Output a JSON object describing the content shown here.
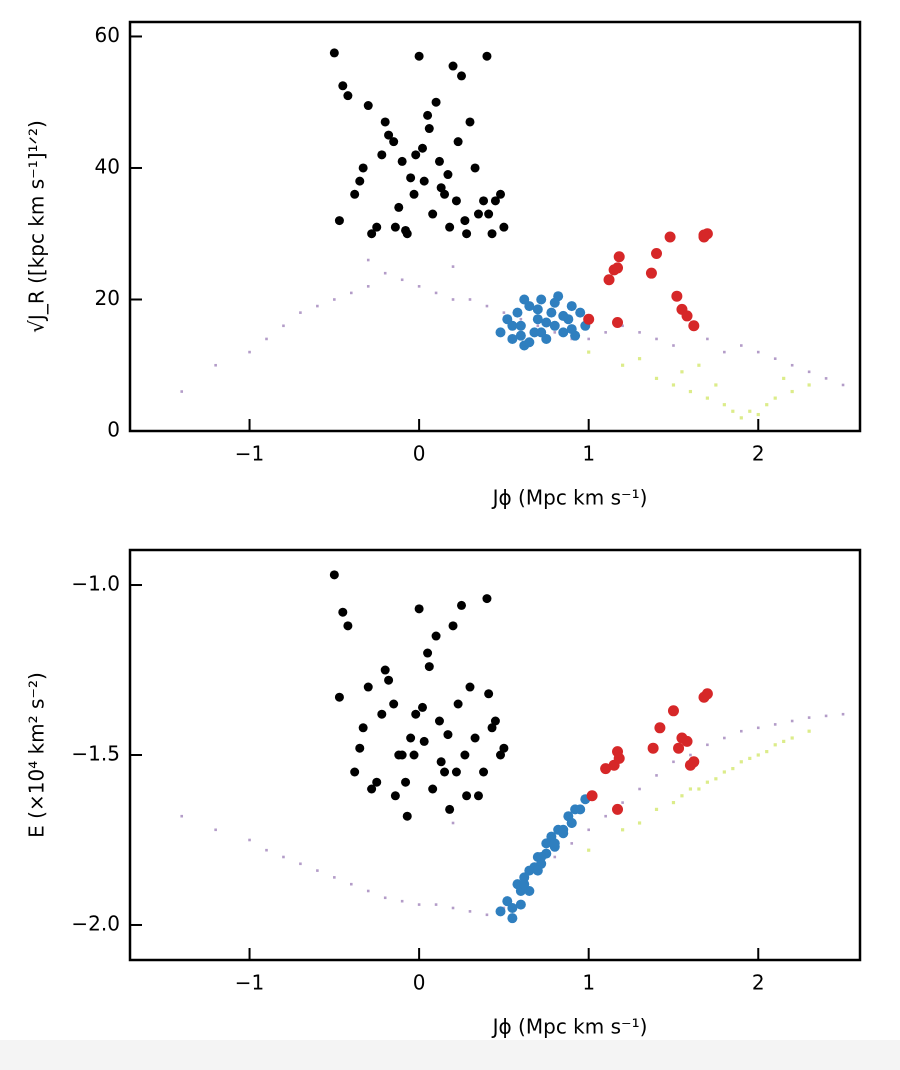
{
  "chart_data": [
    {
      "type": "scatter",
      "xlabel": "Jϕ (Mpc km s⁻¹)",
      "ylabel": "√J_R ([kpc km s⁻¹]¹ᐟ²)",
      "xlim": [
        -1.705,
        2.6
      ],
      "ylim": [
        0,
        62.2
      ],
      "xticks": [
        {
          "value": -1,
          "label": "−1"
        },
        0,
        1,
        2
      ],
      "yticks": [
        0,
        20,
        40,
        60
      ],
      "grid": false,
      "series": [
        {
          "color": "#b39cc8",
          "x": [
            -1.4,
            -1.2,
            -1.0,
            -0.9,
            -0.8,
            -0.7,
            -0.6,
            -0.5,
            -0.4,
            -0.3,
            -0.2,
            -0.1,
            0,
            0.1,
            0.2,
            0.3,
            0.4,
            0.5,
            0.6,
            0.7,
            0.8,
            0.9,
            1.0,
            1.1,
            1.2,
            1.3,
            1.4,
            1.5,
            1.6,
            1.7,
            1.8,
            1.9,
            2.0,
            2.1,
            2.2,
            2.3,
            2.4,
            2.5,
            -0.3,
            0.2
          ],
          "values": [
            6,
            10,
            12,
            14,
            16,
            18,
            19,
            20,
            21,
            22,
            24,
            23,
            22,
            21,
            20,
            20,
            19,
            18,
            17,
            16,
            15,
            14,
            14,
            15,
            16,
            15,
            14,
            13,
            16,
            14,
            12,
            13,
            12,
            11,
            10,
            9,
            8,
            7,
            26,
            25
          ]
        },
        {
          "color": "#dcec8a",
          "x": [
            1.0,
            1.2,
            1.4,
            1.5,
            1.6,
            1.7,
            1.8,
            1.85,
            1.9,
            1.95,
            2.0,
            2.05,
            2.1,
            2.2,
            2.3,
            1.3,
            1.55,
            1.75,
            2.15,
            1.65
          ],
          "values": [
            12,
            10,
            8,
            7,
            6,
            5,
            4,
            3,
            2,
            3,
            2.5,
            4,
            5,
            6,
            7,
            11,
            9,
            7,
            8,
            10
          ]
        },
        {
          "color": "#2f7fbf",
          "x": [
            0.48,
            0.52,
            0.55,
            0.58,
            0.6,
            0.62,
            0.65,
            0.68,
            0.7,
            0.72,
            0.75,
            0.78,
            0.8,
            0.82,
            0.85,
            0.88,
            0.9,
            0.92,
            0.95,
            0.98,
            0.55,
            0.6,
            0.65,
            0.7,
            0.75,
            0.8,
            0.85,
            0.9,
            0.62,
            0.72
          ],
          "values": [
            15,
            17,
            14,
            18,
            16,
            13,
            19,
            15,
            17,
            20,
            14,
            18,
            16,
            20.5,
            15,
            17,
            19,
            14.5,
            18,
            16,
            16,
            14.5,
            13.5,
            18.5,
            16.5,
            19.5,
            17.5,
            15.5,
            20,
            15
          ]
        },
        {
          "color": "#000000",
          "x": [
            -0.5,
            -0.45,
            -0.42,
            -0.3,
            -0.28,
            -0.2,
            -0.15,
            -0.1,
            -0.05,
            0,
            0.05,
            0.1,
            0.15,
            0.2,
            0.25,
            0.3,
            0.35,
            0.4,
            0.45,
            0.5,
            -0.47,
            -0.38,
            -0.33,
            -0.25,
            -0.18,
            -0.12,
            -0.07,
            -0.02,
            0.03,
            0.08,
            0.13,
            0.18,
            0.23,
            0.28,
            0.33,
            0.38,
            0.43,
            0.48,
            -0.35,
            -0.22,
            -0.08,
            0.06,
            0.17,
            0.27,
            0.41,
            -0.03,
            0.12,
            -0.14,
            0.22,
            0.02
          ],
          "values": [
            57.5,
            52.5,
            51,
            49.5,
            30,
            47,
            44,
            41,
            38.5,
            57,
            48,
            50,
            36,
            55.5,
            54,
            47,
            33,
            57,
            35,
            31,
            32,
            36,
            40,
            31,
            45,
            34,
            30,
            42,
            38,
            33,
            37,
            31,
            44,
            30,
            40,
            35,
            30,
            36,
            38,
            42,
            30.5,
            46,
            39,
            32,
            33,
            36,
            41,
            31,
            35,
            43
          ]
        },
        {
          "color": "#d62728",
          "x": [
            1.0,
            1.12,
            1.15,
            1.18,
            1.17,
            1.37,
            1.4,
            1.48,
            1.52,
            1.55,
            1.58,
            1.62,
            1.68,
            1.7,
            1.68,
            1.17
          ],
          "values": [
            17,
            23,
            24.5,
            26.5,
            16.5,
            24,
            27,
            29.5,
            20.5,
            18.5,
            17.5,
            16,
            29.5,
            30,
            29.8,
            24.8
          ]
        }
      ]
    },
    {
      "type": "scatter",
      "xlabel": "Jϕ (Mpc km s⁻¹)",
      "ylabel": "E (×10⁴ km² s⁻²)",
      "xlim": [
        -1.705,
        2.6
      ],
      "ylim": [
        -2.103,
        -0.897
      ],
      "xticks": [
        {
          "value": -1,
          "label": "−1"
        },
        0,
        1,
        2
      ],
      "yticks": [
        {
          "value": -2.0,
          "label": "−2.0"
        },
        {
          "value": -1.5,
          "label": "−1.5"
        },
        {
          "value": -1.0,
          "label": "−1.0"
        }
      ],
      "grid": false,
      "series": [
        {
          "color": "#b39cc8",
          "x": [
            -1.4,
            -1.2,
            -1.0,
            -0.9,
            -0.8,
            -0.7,
            -0.6,
            -0.5,
            -0.4,
            -0.3,
            -0.2,
            -0.1,
            0,
            0.1,
            0.2,
            0.3,
            0.4,
            0.5,
            0.6,
            0.7,
            0.8,
            0.9,
            1.0,
            1.1,
            1.2,
            1.3,
            1.4,
            1.5,
            1.6,
            1.7,
            1.8,
            1.9,
            2.0,
            2.1,
            2.2,
            2.3,
            2.4,
            2.5,
            -0.3,
            0.2
          ],
          "values": [
            -1.68,
            -1.72,
            -1.75,
            -1.78,
            -1.8,
            -1.82,
            -1.84,
            -1.86,
            -1.88,
            -1.9,
            -1.92,
            -1.93,
            -1.94,
            -1.94,
            -1.95,
            -1.96,
            -1.97,
            -1.95,
            -1.9,
            -1.85,
            -1.8,
            -1.76,
            -1.72,
            -1.68,
            -1.64,
            -1.6,
            -1.56,
            -1.52,
            -1.5,
            -1.47,
            -1.45,
            -1.43,
            -1.42,
            -1.41,
            -1.4,
            -1.39,
            -1.385,
            -1.38,
            -1.6,
            -1.7
          ]
        },
        {
          "color": "#dcec8a",
          "x": [
            1.0,
            1.2,
            1.4,
            1.5,
            1.6,
            1.7,
            1.8,
            1.85,
            1.9,
            1.95,
            2.0,
            2.05,
            2.1,
            2.2,
            2.3,
            1.3,
            1.55,
            1.75,
            2.15,
            1.65
          ],
          "values": [
            -1.78,
            -1.72,
            -1.66,
            -1.64,
            -1.6,
            -1.58,
            -1.55,
            -1.54,
            -1.52,
            -1.51,
            -1.5,
            -1.49,
            -1.47,
            -1.45,
            -1.43,
            -1.7,
            -1.62,
            -1.57,
            -1.46,
            -1.6
          ]
        },
        {
          "color": "#2f7fbf",
          "x": [
            0.48,
            0.52,
            0.55,
            0.58,
            0.6,
            0.62,
            0.65,
            0.68,
            0.7,
            0.72,
            0.75,
            0.78,
            0.8,
            0.82,
            0.85,
            0.88,
            0.9,
            0.92,
            0.95,
            0.98,
            0.55,
            0.6,
            0.65,
            0.7,
            0.75,
            0.8,
            0.85,
            0.9,
            0.62,
            0.72
          ],
          "values": [
            -1.96,
            -1.93,
            -1.95,
            -1.88,
            -1.9,
            -1.86,
            -1.84,
            -1.83,
            -1.8,
            -1.82,
            -1.76,
            -1.74,
            -1.77,
            -1.72,
            -1.72,
            -1.68,
            -1.7,
            -1.66,
            -1.66,
            -1.63,
            -1.98,
            -1.94,
            -1.9,
            -1.84,
            -1.79,
            -1.76,
            -1.73,
            -1.7,
            -1.88,
            -1.8
          ]
        },
        {
          "color": "#000000",
          "x": [
            -0.5,
            -0.45,
            -0.42,
            -0.3,
            -0.28,
            -0.2,
            -0.15,
            -0.1,
            -0.05,
            0,
            0.05,
            0.1,
            0.15,
            0.2,
            0.25,
            0.3,
            0.35,
            0.4,
            0.45,
            0.5,
            -0.47,
            -0.38,
            -0.33,
            -0.25,
            -0.18,
            -0.12,
            -0.07,
            -0.02,
            0.03,
            0.08,
            0.13,
            0.18,
            0.23,
            0.28,
            0.33,
            0.38,
            0.43,
            0.48,
            -0.35,
            -0.22,
            -0.08,
            0.06,
            0.17,
            0.27,
            0.41,
            -0.03,
            0.12,
            -0.14,
            0.22,
            0.02
          ],
          "values": [
            -0.97,
            -1.08,
            -1.12,
            -1.3,
            -1.6,
            -1.25,
            -1.35,
            -1.5,
            -1.45,
            -1.07,
            -1.2,
            -1.15,
            -1.55,
            -1.12,
            -1.06,
            -1.3,
            -1.62,
            -1.04,
            -1.4,
            -1.48,
            -1.33,
            -1.55,
            -1.42,
            -1.58,
            -1.28,
            -1.5,
            -1.68,
            -1.38,
            -1.46,
            -1.6,
            -1.52,
            -1.66,
            -1.35,
            -1.62,
            -1.45,
            -1.55,
            -1.42,
            -1.5,
            -1.48,
            -1.38,
            -1.58,
            -1.24,
            -1.44,
            -1.5,
            -1.32,
            -1.5,
            -1.4,
            -1.62,
            -1.55,
            -1.36
          ]
        },
        {
          "color": "#d62728",
          "x": [
            1.02,
            1.1,
            1.15,
            1.17,
            1.18,
            1.17,
            1.38,
            1.42,
            1.5,
            1.53,
            1.58,
            1.6,
            1.62,
            1.68,
            1.7,
            1.55
          ],
          "values": [
            -1.62,
            -1.54,
            -1.53,
            -1.49,
            -1.51,
            -1.66,
            -1.48,
            -1.42,
            -1.37,
            -1.48,
            -1.46,
            -1.53,
            -1.52,
            -1.33,
            -1.32,
            -1.45
          ]
        }
      ]
    }
  ]
}
